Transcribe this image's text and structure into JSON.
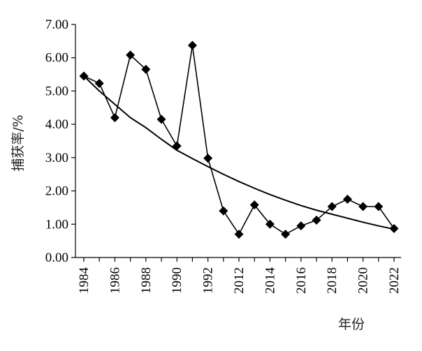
{
  "chart_data": {
    "type": "line",
    "xlabel": "年份",
    "ylabel": "捕获率/%",
    "ylim": [
      0,
      7
    ],
    "y_ticks": [
      "0.00",
      "1.00",
      "2.00",
      "3.00",
      "4.00",
      "5.00",
      "6.00",
      "7.00"
    ],
    "categories": [
      "1984",
      "1985",
      "1986",
      "1987",
      "1988",
      "1989",
      "1990",
      "1991",
      "1992",
      "2011",
      "2012",
      "2013",
      "2014",
      "2015",
      "2016",
      "2017",
      "2018",
      "2019",
      "2020",
      "2021",
      "2022"
    ],
    "x_tick_labels": [
      "1984",
      "1986",
      "1988",
      "1990",
      "1992",
      "2012",
      "2014",
      "2016",
      "2018",
      "2020",
      "2022"
    ],
    "series": [
      {
        "marker": "diamond",
        "values": [
          5.45,
          5.23,
          4.2,
          6.08,
          5.65,
          4.15,
          3.35,
          6.37,
          2.98,
          1.4,
          0.7,
          1.58,
          1.0,
          0.7,
          0.95,
          1.12,
          1.53,
          1.75,
          1.53,
          1.53,
          0.87
        ]
      },
      {
        "style": "trendline",
        "values": [
          5.45,
          5.0,
          4.6,
          4.2,
          3.9,
          3.55,
          3.22,
          2.97,
          2.73,
          2.5,
          2.28,
          2.08,
          1.89,
          1.72,
          1.56,
          1.42,
          1.3,
          1.18,
          1.06,
          0.95,
          0.85
        ]
      }
    ]
  }
}
